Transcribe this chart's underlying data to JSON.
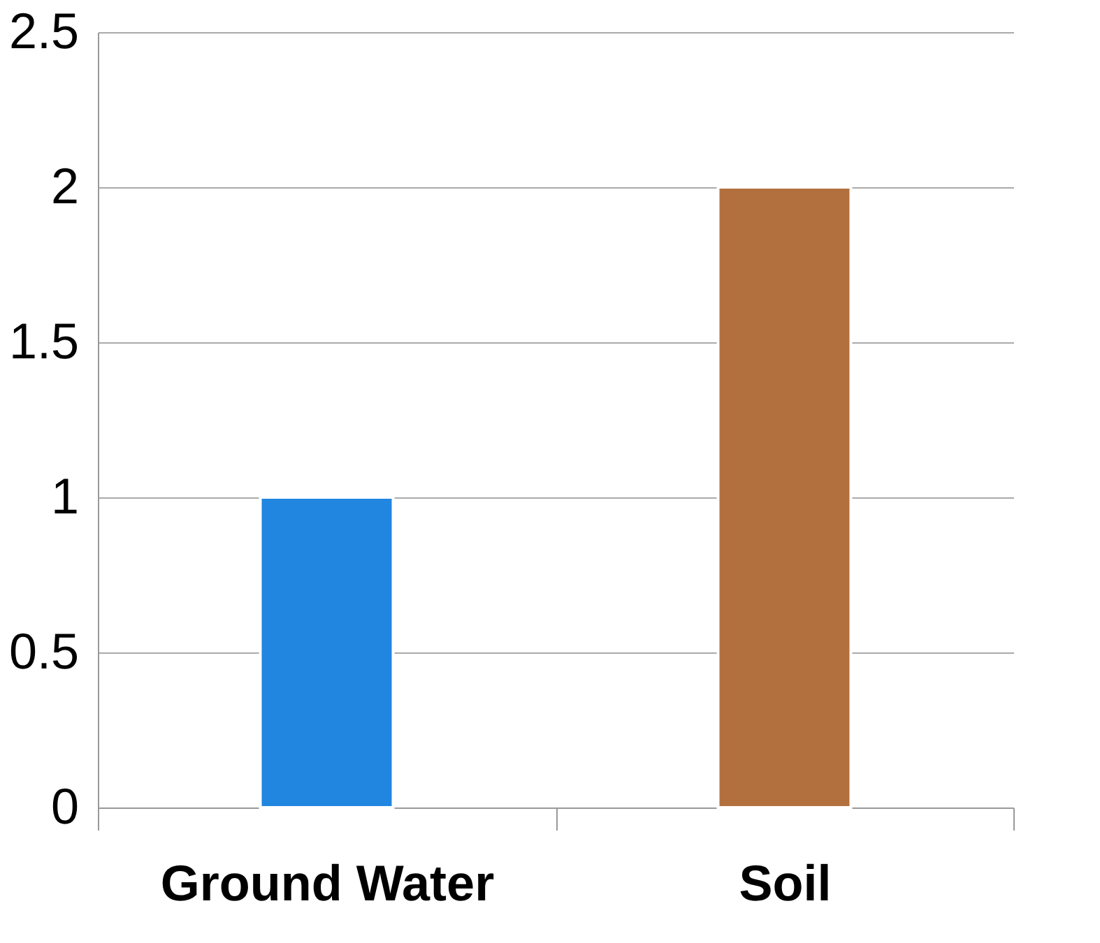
{
  "chart_data": {
    "type": "bar",
    "categories": [
      "Ground Water",
      "Soil"
    ],
    "values": [
      1,
      2
    ],
    "colors": [
      "#2186e0",
      "#b3703f"
    ],
    "ylim": [
      0,
      2.5
    ],
    "yticks": [
      0,
      0.5,
      1,
      1.5,
      2,
      2.5
    ],
    "grid": "y"
  }
}
